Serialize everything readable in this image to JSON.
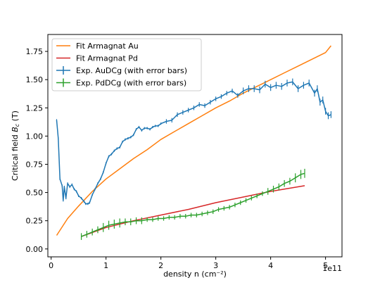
{
  "chart_data": {
    "type": "line",
    "title": "",
    "xlabel": "density n (cm⁻²)",
    "ylabel": "Critical field B_c (T)",
    "ylabel_main": "Critical field ",
    "ylabel_sym": "B",
    "ylabel_sub": "c",
    "ylabel_unit": " (T)",
    "x_offset_label": "1e11",
    "xlim": [
      -0.06,
      5.3
    ],
    "ylim": [
      -0.07,
      1.9
    ],
    "xticks": [
      0,
      1,
      2,
      3,
      4,
      5
    ],
    "xtick_labels": [
      "0",
      "1",
      "2",
      "3",
      "4",
      "5"
    ],
    "yticks": [
      0.0,
      0.25,
      0.5,
      0.75,
      1.0,
      1.25,
      1.5,
      1.75
    ],
    "ytick_labels": [
      "0.00",
      "0.25",
      "0.50",
      "0.75",
      "1.00",
      "1.25",
      "1.50",
      "1.75"
    ],
    "grid": false,
    "legend_position": "top-left",
    "series": [
      {
        "name": "Fit Armagnat Au",
        "kind": "line",
        "color": "#ff7f0e",
        "x": [
          0.1,
          0.3,
          0.5,
          0.75,
          1.0,
          1.25,
          1.5,
          1.75,
          2.0,
          2.25,
          2.5,
          2.75,
          3.0,
          3.25,
          3.5,
          3.75,
          4.0,
          4.25,
          4.5,
          4.75,
          5.0,
          5.1
        ],
        "y": [
          0.12,
          0.27,
          0.38,
          0.51,
          0.62,
          0.71,
          0.8,
          0.88,
          0.97,
          1.04,
          1.11,
          1.18,
          1.25,
          1.31,
          1.38,
          1.44,
          1.5,
          1.56,
          1.62,
          1.68,
          1.74,
          1.8
        ]
      },
      {
        "name": "Fit Armagnat Pd",
        "kind": "line",
        "color": "#d62728",
        "x": [
          0.55,
          1.0,
          1.5,
          2.0,
          2.5,
          3.0,
          3.5,
          4.0,
          4.62
        ],
        "y": [
          0.11,
          0.19,
          0.25,
          0.3,
          0.35,
          0.41,
          0.46,
          0.51,
          0.56
        ]
      },
      {
        "name": "Exp. AuDCg (with error bars)",
        "kind": "errorbar",
        "color": "#1f77b4",
        "x": [
          0.1,
          0.13,
          0.16,
          0.2,
          0.22,
          0.24,
          0.27,
          0.3,
          0.34,
          0.38,
          0.42,
          0.46,
          0.5,
          0.55,
          0.6,
          0.63,
          0.67,
          0.7,
          0.75,
          0.8,
          0.85,
          0.9,
          0.95,
          1.0,
          1.05,
          1.1,
          1.15,
          1.2,
          1.25,
          1.3,
          1.35,
          1.4,
          1.45,
          1.5,
          1.55,
          1.6,
          1.65,
          1.7,
          1.75,
          1.8,
          1.85,
          1.9,
          1.95,
          2.0,
          2.1,
          2.2,
          2.3,
          2.4,
          2.5,
          2.6,
          2.7,
          2.8,
          2.9,
          3.0,
          3.1,
          3.2,
          3.3,
          3.4,
          3.5,
          3.6,
          3.7,
          3.8,
          3.9,
          4.0,
          4.1,
          4.2,
          4.3,
          4.4,
          4.5,
          4.6,
          4.7,
          4.8,
          4.85,
          4.9,
          4.95,
          5.0,
          5.05,
          5.1
        ],
        "y": [
          1.14,
          0.98,
          0.62,
          0.56,
          0.43,
          0.55,
          0.45,
          0.58,
          0.55,
          0.57,
          0.53,
          0.51,
          0.47,
          0.45,
          0.42,
          0.4,
          0.4,
          0.41,
          0.48,
          0.53,
          0.58,
          0.62,
          0.68,
          0.76,
          0.82,
          0.84,
          0.87,
          0.89,
          0.9,
          0.95,
          0.97,
          0.98,
          0.99,
          1.01,
          1.06,
          1.08,
          1.05,
          1.07,
          1.07,
          1.06,
          1.08,
          1.09,
          1.09,
          1.11,
          1.13,
          1.14,
          1.19,
          1.21,
          1.23,
          1.25,
          1.28,
          1.27,
          1.3,
          1.33,
          1.35,
          1.38,
          1.4,
          1.36,
          1.4,
          1.42,
          1.42,
          1.41,
          1.46,
          1.43,
          1.45,
          1.44,
          1.47,
          1.48,
          1.42,
          1.45,
          1.47,
          1.38,
          1.42,
          1.3,
          1.32,
          1.22,
          1.18,
          1.19
        ],
        "yerr": [
          0.01,
          0.01,
          0.01,
          0.01,
          0.01,
          0.01,
          0.01,
          0.01,
          0.01,
          0.01,
          0.01,
          0.01,
          0.01,
          0.01,
          0.01,
          0.01,
          0.01,
          0.01,
          0.01,
          0.01,
          0.01,
          0.01,
          0.01,
          0.01,
          0.01,
          0.01,
          0.01,
          0.01,
          0.01,
          0.01,
          0.01,
          0.01,
          0.01,
          0.01,
          0.01,
          0.01,
          0.01,
          0.01,
          0.01,
          0.01,
          0.01,
          0.01,
          0.01,
          0.01,
          0.02,
          0.02,
          0.02,
          0.02,
          0.02,
          0.02,
          0.02,
          0.02,
          0.02,
          0.02,
          0.02,
          0.02,
          0.02,
          0.02,
          0.03,
          0.03,
          0.03,
          0.03,
          0.03,
          0.03,
          0.03,
          0.03,
          0.03,
          0.03,
          0.03,
          0.03,
          0.03,
          0.03,
          0.03,
          0.03,
          0.03,
          0.03,
          0.03,
          0.03
        ]
      },
      {
        "name": "Exp. PdDCg (with error bars)",
        "kind": "errorbar",
        "color": "#2ca02c",
        "x": [
          0.55,
          0.65,
          0.75,
          0.85,
          0.95,
          1.05,
          1.15,
          1.25,
          1.35,
          1.45,
          1.55,
          1.65,
          1.75,
          1.85,
          1.95,
          2.05,
          2.15,
          2.25,
          2.35,
          2.45,
          2.55,
          2.65,
          2.75,
          2.85,
          2.95,
          3.05,
          3.15,
          3.25,
          3.35,
          3.45,
          3.55,
          3.65,
          3.75,
          3.85,
          3.95,
          4.05,
          4.15,
          4.25,
          4.35,
          4.45,
          4.55,
          4.62
        ],
        "y": [
          0.11,
          0.13,
          0.15,
          0.17,
          0.19,
          0.21,
          0.22,
          0.23,
          0.24,
          0.24,
          0.25,
          0.25,
          0.26,
          0.26,
          0.27,
          0.27,
          0.28,
          0.28,
          0.29,
          0.29,
          0.3,
          0.3,
          0.31,
          0.32,
          0.33,
          0.35,
          0.36,
          0.37,
          0.39,
          0.41,
          0.43,
          0.45,
          0.47,
          0.49,
          0.51,
          0.53,
          0.55,
          0.58,
          0.6,
          0.63,
          0.66,
          0.67
        ],
        "yerr": [
          0.03,
          0.03,
          0.03,
          0.03,
          0.04,
          0.04,
          0.04,
          0.04,
          0.03,
          0.03,
          0.03,
          0.03,
          0.02,
          0.02,
          0.02,
          0.02,
          0.02,
          0.02,
          0.02,
          0.02,
          0.02,
          0.02,
          0.02,
          0.02,
          0.02,
          0.02,
          0.02,
          0.02,
          0.02,
          0.02,
          0.02,
          0.02,
          0.02,
          0.02,
          0.03,
          0.03,
          0.03,
          0.03,
          0.03,
          0.04,
          0.04,
          0.04
        ]
      }
    ]
  }
}
